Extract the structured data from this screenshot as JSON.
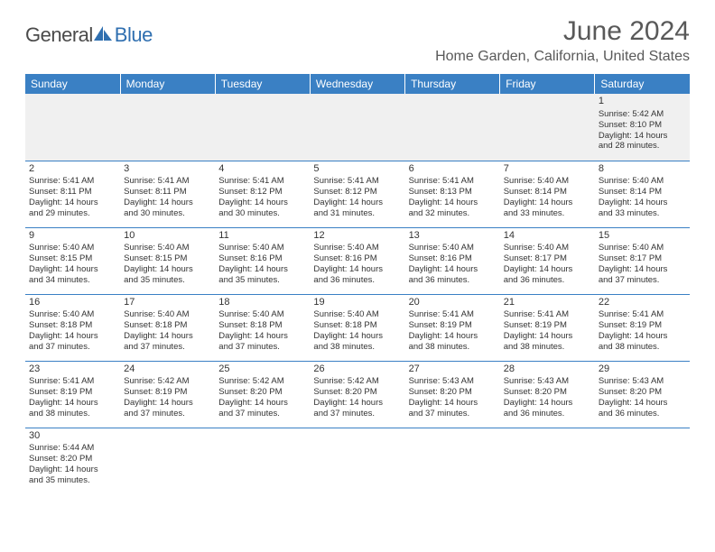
{
  "brand": {
    "part1": "General",
    "part2": "Blue"
  },
  "title": "June 2024",
  "location": "Home Garden, California, United States",
  "colors": {
    "header_bg": "#3a80c4",
    "header_text": "#ffffff",
    "border": "#3a80c4",
    "text": "#333333",
    "title_text": "#595959",
    "empty_bg": "#f0f0f0",
    "logo_blue": "#2f6fb0",
    "logo_gray": "#4a4a4a"
  },
  "typography": {
    "title_fontsize": 30,
    "location_fontsize": 16,
    "header_fontsize": 12,
    "cell_fontsize": 9.5,
    "daynum_fontsize": 11
  },
  "day_names": [
    "Sunday",
    "Monday",
    "Tuesday",
    "Wednesday",
    "Thursday",
    "Friday",
    "Saturday"
  ],
  "weeks": [
    [
      null,
      null,
      null,
      null,
      null,
      null,
      {
        "n": "1",
        "sr": "Sunrise: 5:42 AM",
        "ss": "Sunset: 8:10 PM",
        "d1": "Daylight: 14 hours",
        "d2": "and 28 minutes."
      }
    ],
    [
      {
        "n": "2",
        "sr": "Sunrise: 5:41 AM",
        "ss": "Sunset: 8:11 PM",
        "d1": "Daylight: 14 hours",
        "d2": "and 29 minutes."
      },
      {
        "n": "3",
        "sr": "Sunrise: 5:41 AM",
        "ss": "Sunset: 8:11 PM",
        "d1": "Daylight: 14 hours",
        "d2": "and 30 minutes."
      },
      {
        "n": "4",
        "sr": "Sunrise: 5:41 AM",
        "ss": "Sunset: 8:12 PM",
        "d1": "Daylight: 14 hours",
        "d2": "and 30 minutes."
      },
      {
        "n": "5",
        "sr": "Sunrise: 5:41 AM",
        "ss": "Sunset: 8:12 PM",
        "d1": "Daylight: 14 hours",
        "d2": "and 31 minutes."
      },
      {
        "n": "6",
        "sr": "Sunrise: 5:41 AM",
        "ss": "Sunset: 8:13 PM",
        "d1": "Daylight: 14 hours",
        "d2": "and 32 minutes."
      },
      {
        "n": "7",
        "sr": "Sunrise: 5:40 AM",
        "ss": "Sunset: 8:14 PM",
        "d1": "Daylight: 14 hours",
        "d2": "and 33 minutes."
      },
      {
        "n": "8",
        "sr": "Sunrise: 5:40 AM",
        "ss": "Sunset: 8:14 PM",
        "d1": "Daylight: 14 hours",
        "d2": "and 33 minutes."
      }
    ],
    [
      {
        "n": "9",
        "sr": "Sunrise: 5:40 AM",
        "ss": "Sunset: 8:15 PM",
        "d1": "Daylight: 14 hours",
        "d2": "and 34 minutes."
      },
      {
        "n": "10",
        "sr": "Sunrise: 5:40 AM",
        "ss": "Sunset: 8:15 PM",
        "d1": "Daylight: 14 hours",
        "d2": "and 35 minutes."
      },
      {
        "n": "11",
        "sr": "Sunrise: 5:40 AM",
        "ss": "Sunset: 8:16 PM",
        "d1": "Daylight: 14 hours",
        "d2": "and 35 minutes."
      },
      {
        "n": "12",
        "sr": "Sunrise: 5:40 AM",
        "ss": "Sunset: 8:16 PM",
        "d1": "Daylight: 14 hours",
        "d2": "and 36 minutes."
      },
      {
        "n": "13",
        "sr": "Sunrise: 5:40 AM",
        "ss": "Sunset: 8:16 PM",
        "d1": "Daylight: 14 hours",
        "d2": "and 36 minutes."
      },
      {
        "n": "14",
        "sr": "Sunrise: 5:40 AM",
        "ss": "Sunset: 8:17 PM",
        "d1": "Daylight: 14 hours",
        "d2": "and 36 minutes."
      },
      {
        "n": "15",
        "sr": "Sunrise: 5:40 AM",
        "ss": "Sunset: 8:17 PM",
        "d1": "Daylight: 14 hours",
        "d2": "and 37 minutes."
      }
    ],
    [
      {
        "n": "16",
        "sr": "Sunrise: 5:40 AM",
        "ss": "Sunset: 8:18 PM",
        "d1": "Daylight: 14 hours",
        "d2": "and 37 minutes."
      },
      {
        "n": "17",
        "sr": "Sunrise: 5:40 AM",
        "ss": "Sunset: 8:18 PM",
        "d1": "Daylight: 14 hours",
        "d2": "and 37 minutes."
      },
      {
        "n": "18",
        "sr": "Sunrise: 5:40 AM",
        "ss": "Sunset: 8:18 PM",
        "d1": "Daylight: 14 hours",
        "d2": "and 37 minutes."
      },
      {
        "n": "19",
        "sr": "Sunrise: 5:40 AM",
        "ss": "Sunset: 8:18 PM",
        "d1": "Daylight: 14 hours",
        "d2": "and 38 minutes."
      },
      {
        "n": "20",
        "sr": "Sunrise: 5:41 AM",
        "ss": "Sunset: 8:19 PM",
        "d1": "Daylight: 14 hours",
        "d2": "and 38 minutes."
      },
      {
        "n": "21",
        "sr": "Sunrise: 5:41 AM",
        "ss": "Sunset: 8:19 PM",
        "d1": "Daylight: 14 hours",
        "d2": "and 38 minutes."
      },
      {
        "n": "22",
        "sr": "Sunrise: 5:41 AM",
        "ss": "Sunset: 8:19 PM",
        "d1": "Daylight: 14 hours",
        "d2": "and 38 minutes."
      }
    ],
    [
      {
        "n": "23",
        "sr": "Sunrise: 5:41 AM",
        "ss": "Sunset: 8:19 PM",
        "d1": "Daylight: 14 hours",
        "d2": "and 38 minutes."
      },
      {
        "n": "24",
        "sr": "Sunrise: 5:42 AM",
        "ss": "Sunset: 8:19 PM",
        "d1": "Daylight: 14 hours",
        "d2": "and 37 minutes."
      },
      {
        "n": "25",
        "sr": "Sunrise: 5:42 AM",
        "ss": "Sunset: 8:20 PM",
        "d1": "Daylight: 14 hours",
        "d2": "and 37 minutes."
      },
      {
        "n": "26",
        "sr": "Sunrise: 5:42 AM",
        "ss": "Sunset: 8:20 PM",
        "d1": "Daylight: 14 hours",
        "d2": "and 37 minutes."
      },
      {
        "n": "27",
        "sr": "Sunrise: 5:43 AM",
        "ss": "Sunset: 8:20 PM",
        "d1": "Daylight: 14 hours",
        "d2": "and 37 minutes."
      },
      {
        "n": "28",
        "sr": "Sunrise: 5:43 AM",
        "ss": "Sunset: 8:20 PM",
        "d1": "Daylight: 14 hours",
        "d2": "and 36 minutes."
      },
      {
        "n": "29",
        "sr": "Sunrise: 5:43 AM",
        "ss": "Sunset: 8:20 PM",
        "d1": "Daylight: 14 hours",
        "d2": "and 36 minutes."
      }
    ],
    [
      {
        "n": "30",
        "sr": "Sunrise: 5:44 AM",
        "ss": "Sunset: 8:20 PM",
        "d1": "Daylight: 14 hours",
        "d2": "and 35 minutes."
      },
      null,
      null,
      null,
      null,
      null,
      null
    ]
  ]
}
